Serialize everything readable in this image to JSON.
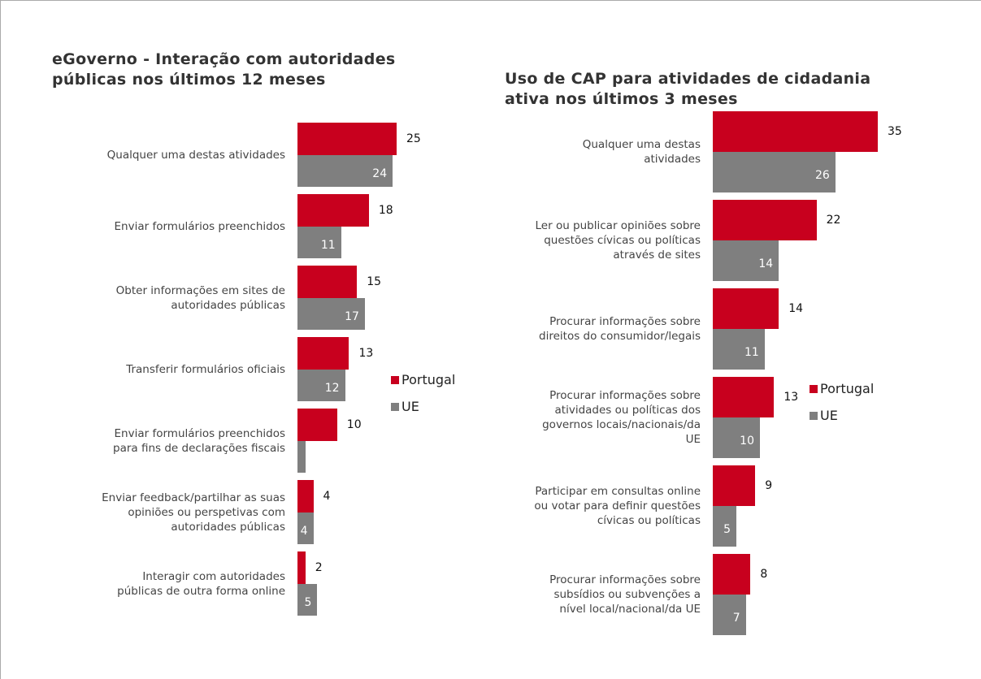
{
  "chart_data": [
    {
      "type": "bar",
      "orientation": "horizontal",
      "title": "eGoverno - Interação com autoridades\npúblicas nos últimos 12 meses",
      "categories": [
        "Qualquer uma destas atividades",
        "Enviar formulários preenchidos",
        "Obter informações em sites de\nautoridades públicas",
        "Transferir formulários oficiais",
        "Enviar formulários preenchidos\npara fins de declarações fiscais",
        "Enviar feedback/partilhar as suas\nopiniões ou perspetivas com\nautoridades públicas",
        "Interagir com autoridades\npúblicas de outra forma online"
      ],
      "series": [
        {
          "name": "Portugal",
          "color": "#c8001e",
          "values": [
            25,
            18,
            15,
            13,
            10,
            4,
            2
          ]
        },
        {
          "name": "UE",
          "color": "#7f7f7f",
          "values": [
            24,
            11,
            17,
            12,
            2,
            4,
            5
          ],
          "value_labels": [
            "24",
            "11",
            "17",
            "12",
            null,
            "4",
            "5"
          ]
        }
      ],
      "xlim": [
        0,
        25
      ],
      "legend": "right"
    },
    {
      "type": "bar",
      "orientation": "horizontal",
      "title": "Uso de CAP para atividades de cidadania\nativa nos últimos 3 meses",
      "categories": [
        "Qualquer uma destas\natividades",
        "Ler ou publicar opiniões sobre\nquestões cívicas ou políticas\natravés de sites",
        "Procurar informações sobre\ndireitos do consumidor/legais",
        "Procurar informações sobre\natividades ou políticas dos\ngovernos locais/nacionais/da\nUE",
        "Participar em consultas online\nou votar para definir questões\ncívicas ou políticas",
        "Procurar informações sobre\nsubsídios ou subvenções a\nnível local/nacional/da UE"
      ],
      "series": [
        {
          "name": "Portugal",
          "color": "#c8001e",
          "values": [
            35,
            22,
            14,
            13,
            9,
            8
          ]
        },
        {
          "name": "UE",
          "color": "#7f7f7f",
          "values": [
            26,
            14,
            11,
            10,
            5,
            7
          ]
        }
      ],
      "xlim": [
        0,
        35
      ],
      "legend": "right"
    }
  ]
}
